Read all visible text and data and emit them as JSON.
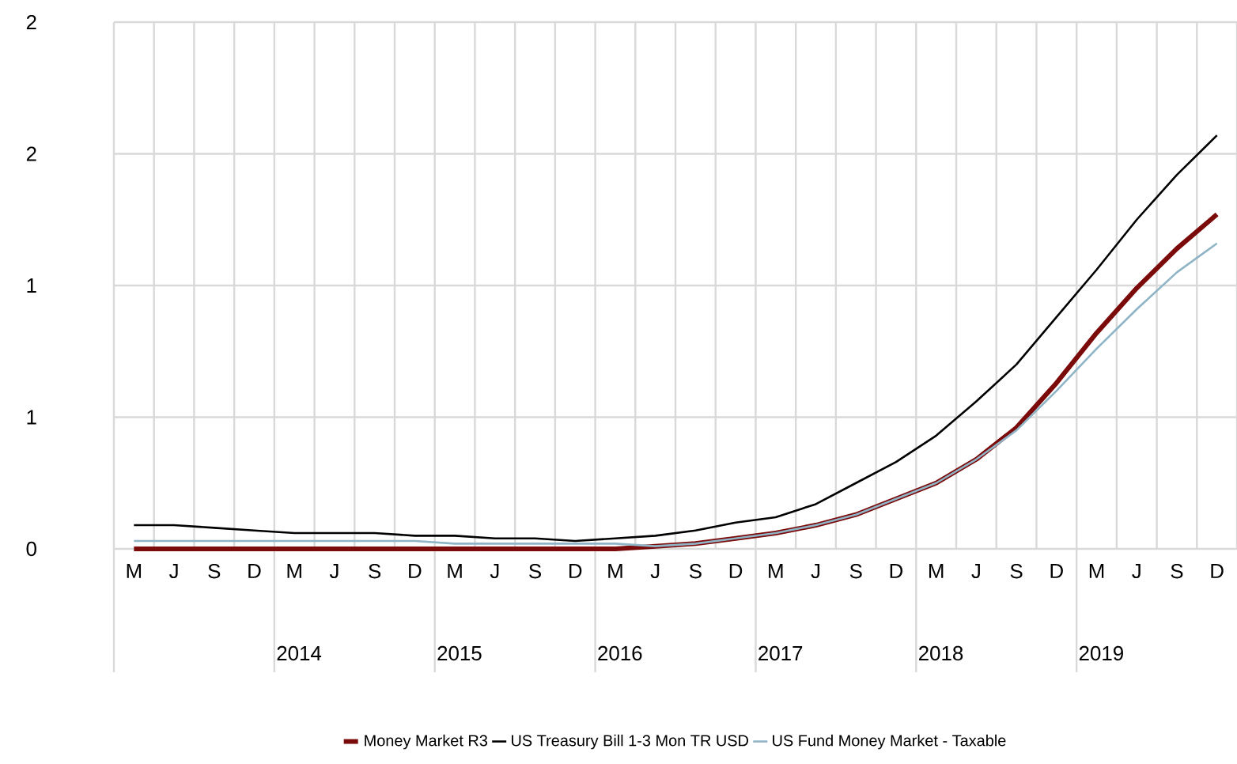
{
  "chart_data": {
    "type": "line",
    "categories": [
      "M",
      "J",
      "S",
      "D",
      "M",
      "J",
      "S",
      "D",
      "M",
      "J",
      "S",
      "D",
      "M",
      "J",
      "S",
      "D",
      "M",
      "J",
      "S",
      "D",
      "M",
      "J",
      "S",
      "D",
      "M",
      "J",
      "S",
      "D"
    ],
    "series": [
      {
        "name": "Money Market R3",
        "color": "#7b0a0a",
        "values": [
          0,
          0,
          0,
          0,
          0,
          0,
          0,
          0,
          0,
          0,
          0,
          0,
          0,
          0.01,
          0.02,
          0.04,
          0.06,
          0.09,
          0.13,
          0.19,
          0.25,
          0.34,
          0.46,
          0.63,
          0.82,
          0.99,
          1.14,
          1.27
        ]
      },
      {
        "name": "US Treasury Bill 1-3 Mon TR USD",
        "color": "#000000",
        "values": [
          0.09,
          0.09,
          0.08,
          0.07,
          0.06,
          0.06,
          0.06,
          0.05,
          0.05,
          0.04,
          0.04,
          0.03,
          0.04,
          0.05,
          0.07,
          0.1,
          0.12,
          0.17,
          0.25,
          0.33,
          0.43,
          0.56,
          0.7,
          0.88,
          1.06,
          1.25,
          1.42,
          1.57
        ]
      },
      {
        "name": "US Fund Money Market - Taxable",
        "color": "#8fb4c6",
        "values": [
          0.03,
          0.03,
          0.03,
          0.03,
          0.03,
          0.03,
          0.03,
          0.03,
          0.02,
          0.02,
          0.02,
          0.02,
          0.02,
          0.01,
          0.02,
          0.04,
          0.06,
          0.09,
          0.13,
          0.19,
          0.25,
          0.34,
          0.45,
          0.6,
          0.76,
          0.91,
          1.05,
          1.16
        ]
      }
    ],
    "ylim": [
      0,
      2
    ],
    "yticks": [
      0,
      {
        "value": 0.5,
        "label": "1"
      },
      1,
      {
        "value": 1.5,
        "label": "2"
      },
      2
    ],
    "annotations": [
      "2014",
      "2015",
      "2016",
      "2017",
      "2018",
      "2019"
    ],
    "grid": true,
    "legend": "bottom",
    "marker": "none",
    "line_style": "solid"
  }
}
